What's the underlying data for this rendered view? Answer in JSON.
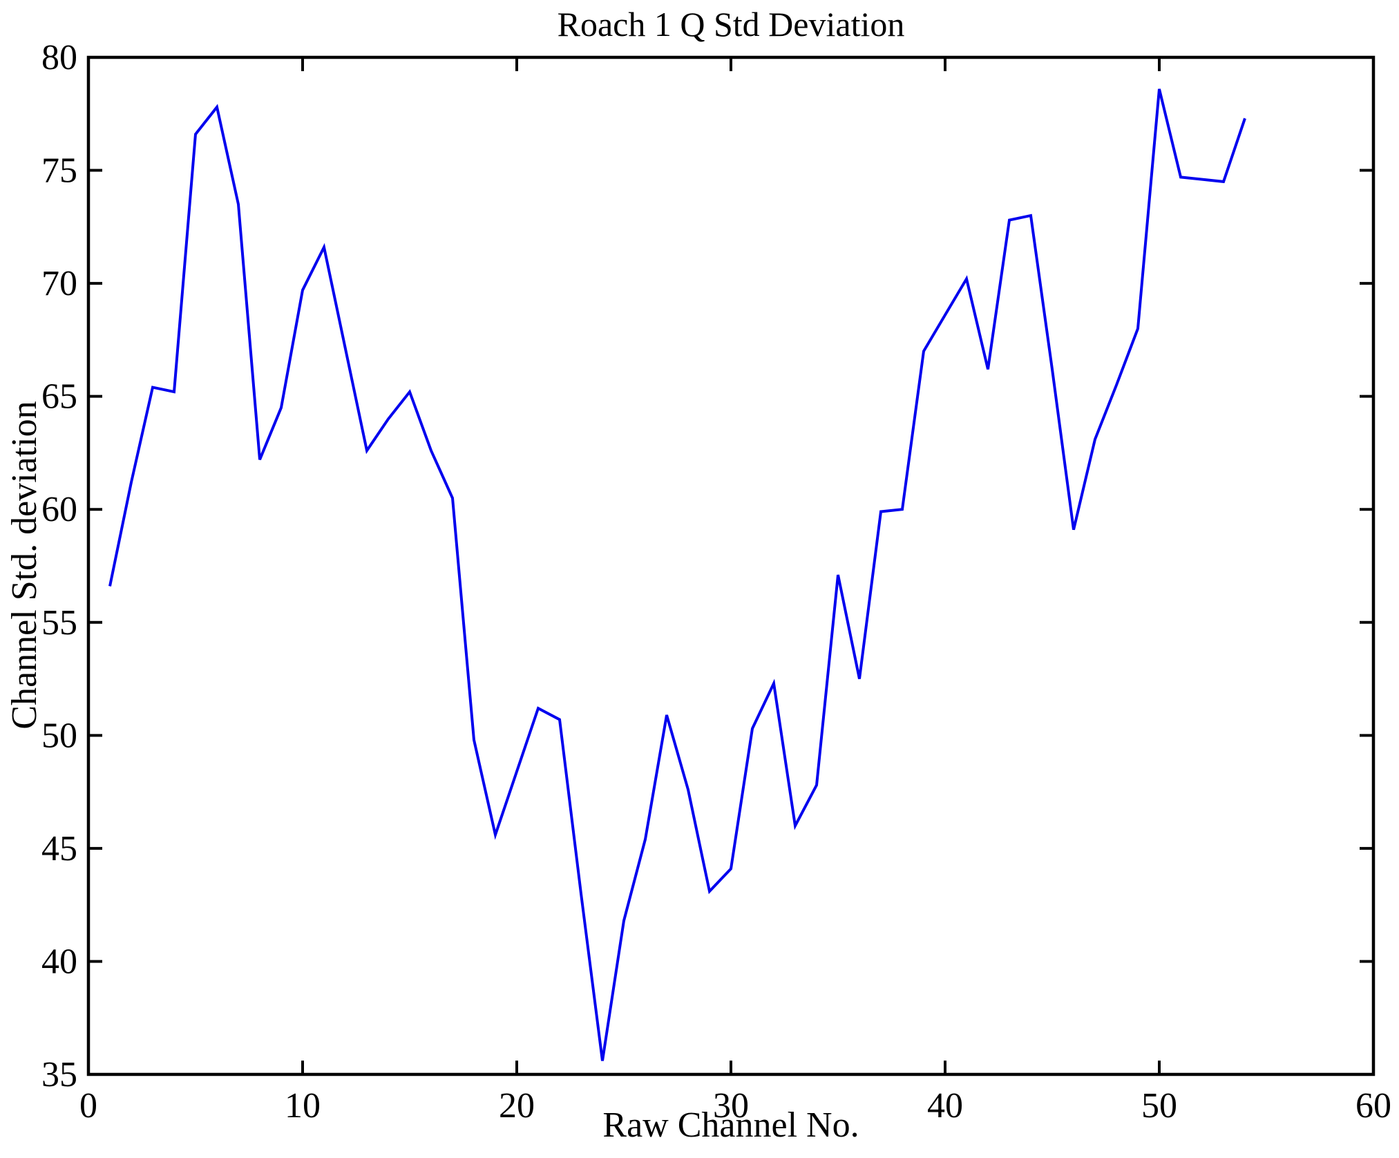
{
  "title": "Roach 1 Q Std Deviation",
  "axes": {
    "xlabel": "Raw Channel No.",
    "ylabel": "Channel Std. deviation"
  },
  "chart_data": {
    "type": "line",
    "title": "Roach 1 Q Std Deviation",
    "xlabel": "Raw Channel No.",
    "ylabel": "Channel Std. deviation",
    "xlim": [
      0,
      60
    ],
    "ylim": [
      35,
      80
    ],
    "x_ticks": [
      0,
      10,
      20,
      30,
      40,
      50,
      60
    ],
    "y_ticks": [
      35,
      40,
      45,
      50,
      55,
      60,
      65,
      70,
      75,
      80
    ],
    "grid": false,
    "legend_position": "none",
    "line_color": "#0000EE",
    "axis_color": "#000000",
    "x": [
      1,
      2,
      3,
      4,
      5,
      6,
      7,
      8,
      9,
      10,
      11,
      12,
      13,
      14,
      15,
      16,
      17,
      18,
      19,
      20,
      21,
      22,
      23,
      24,
      25,
      26,
      27,
      28,
      29,
      30,
      31,
      32,
      33,
      34,
      35,
      36,
      37,
      38,
      39,
      40,
      41,
      42,
      43,
      44,
      45,
      46,
      47,
      48,
      49,
      50,
      51,
      52,
      53,
      54
    ],
    "values": [
      56.6,
      61.2,
      65.4,
      65.2,
      76.6,
      77.8,
      73.5,
      62.2,
      64.5,
      69.7,
      71.6,
      67.1,
      62.6,
      64.0,
      65.2,
      62.6,
      60.5,
      49.8,
      45.6,
      48.4,
      51.2,
      50.7,
      43.0,
      35.6,
      41.8,
      45.4,
      50.9,
      47.6,
      43.1,
      44.1,
      50.3,
      52.3,
      46.0,
      47.8,
      57.1,
      52.5,
      59.9,
      60.0,
      67.0,
      68.6,
      70.2,
      66.2,
      72.8,
      73.0,
      66.2,
      59.1,
      63.1,
      65.5,
      68.0,
      78.6,
      74.7,
      74.6,
      74.5,
      77.3
    ]
  }
}
